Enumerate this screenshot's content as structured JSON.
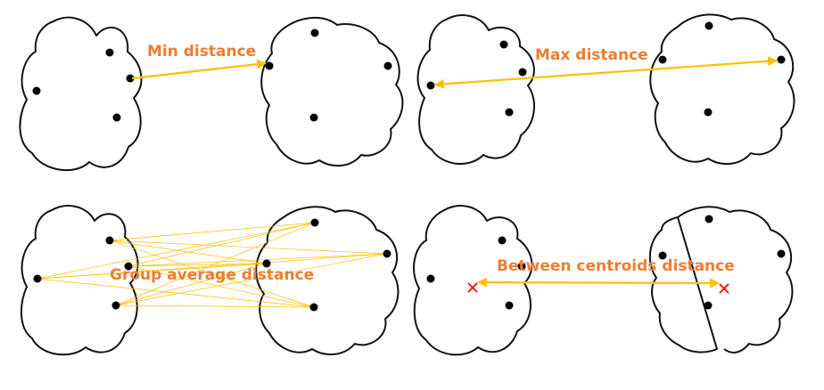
{
  "labels": {
    "min": "Min distance",
    "max": "Max distance",
    "group_avg": "Group average distance",
    "centroid": "Between centroids distance"
  },
  "colors": {
    "label": "#ED7D31",
    "line": "#FFC000",
    "centroid_marker": "#FF0000",
    "outline": "#111111",
    "point": "#000000"
  },
  "icons": {
    "centroid_marker": "x-cross"
  }
}
